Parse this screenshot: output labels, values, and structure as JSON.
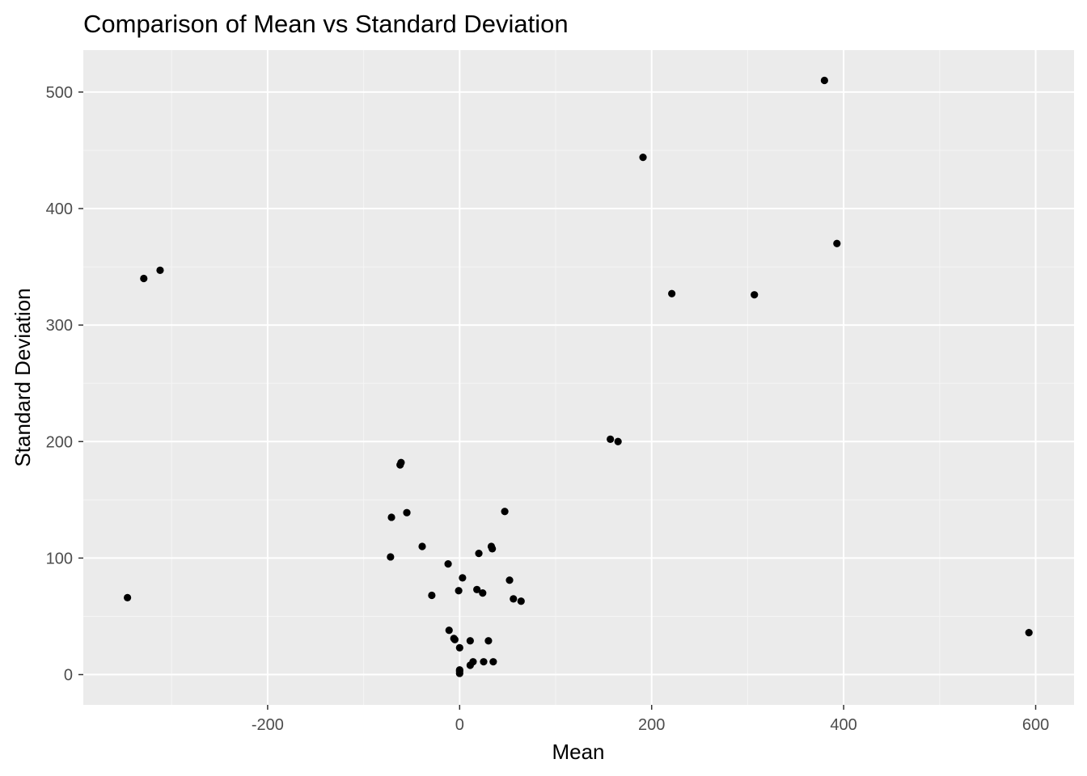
{
  "chart_data": {
    "type": "scatter",
    "title": "Comparison of Mean vs Standard Deviation",
    "xlabel": "Mean",
    "ylabel": "Standard Deviation",
    "xlim": [
      -392,
      640
    ],
    "ylim": [
      -26,
      536
    ],
    "x_ticks": [
      -200,
      0,
      200,
      400,
      600
    ],
    "x_tick_labels": [
      "-200",
      "0",
      "200",
      "400",
      "600"
    ],
    "x_minor_ticks": [
      -300,
      -100,
      100,
      300,
      500
    ],
    "y_ticks": [
      0,
      100,
      200,
      300,
      400,
      500
    ],
    "y_tick_labels": [
      "0",
      "100",
      "200",
      "300",
      "400",
      "500"
    ],
    "y_minor_ticks": [
      50,
      150,
      250,
      350,
      450
    ],
    "grid": true,
    "legend": "none",
    "colors": {
      "panel_background": "#ebebeb",
      "grid_major": "#ffffff",
      "grid_minor": "#f5f5f5",
      "point": "#000000",
      "tick_label": "#4d4d4d",
      "tick_mark": "#333333"
    },
    "points": [
      {
        "x": 380,
        "y": 510
      },
      {
        "x": 191,
        "y": 444
      },
      {
        "x": 393,
        "y": 370
      },
      {
        "x": 221,
        "y": 327
      },
      {
        "x": 307,
        "y": 326
      },
      {
        "x": -329,
        "y": 340
      },
      {
        "x": -312,
        "y": 347
      },
      {
        "x": -346,
        "y": 66
      },
      {
        "x": 157,
        "y": 202
      },
      {
        "x": 165,
        "y": 200
      },
      {
        "x": -61,
        "y": 182
      },
      {
        "x": -62,
        "y": 180
      },
      {
        "x": -71,
        "y": 135
      },
      {
        "x": -55,
        "y": 139
      },
      {
        "x": 47,
        "y": 140
      },
      {
        "x": -72,
        "y": 101
      },
      {
        "x": -39,
        "y": 110
      },
      {
        "x": 33,
        "y": 110
      },
      {
        "x": 34,
        "y": 108
      },
      {
        "x": 20,
        "y": 104
      },
      {
        "x": -12,
        "y": 95
      },
      {
        "x": 3,
        "y": 83
      },
      {
        "x": 52,
        "y": 81
      },
      {
        "x": 18,
        "y": 73
      },
      {
        "x": -1,
        "y": 72
      },
      {
        "x": 24,
        "y": 70
      },
      {
        "x": -29,
        "y": 68
      },
      {
        "x": 56,
        "y": 65
      },
      {
        "x": 64,
        "y": 63
      },
      {
        "x": -11,
        "y": 38
      },
      {
        "x": -6,
        "y": 31
      },
      {
        "x": -5,
        "y": 30
      },
      {
        "x": 11,
        "y": 29
      },
      {
        "x": 30,
        "y": 29
      },
      {
        "x": 0,
        "y": 23
      },
      {
        "x": 25,
        "y": 11
      },
      {
        "x": 35,
        "y": 11
      },
      {
        "x": 14,
        "y": 11
      },
      {
        "x": 11,
        "y": 8
      },
      {
        "x": 0,
        "y": 4
      },
      {
        "x": 0,
        "y": 3
      },
      {
        "x": 0,
        "y": 1
      },
      {
        "x": 593,
        "y": 36
      }
    ]
  }
}
